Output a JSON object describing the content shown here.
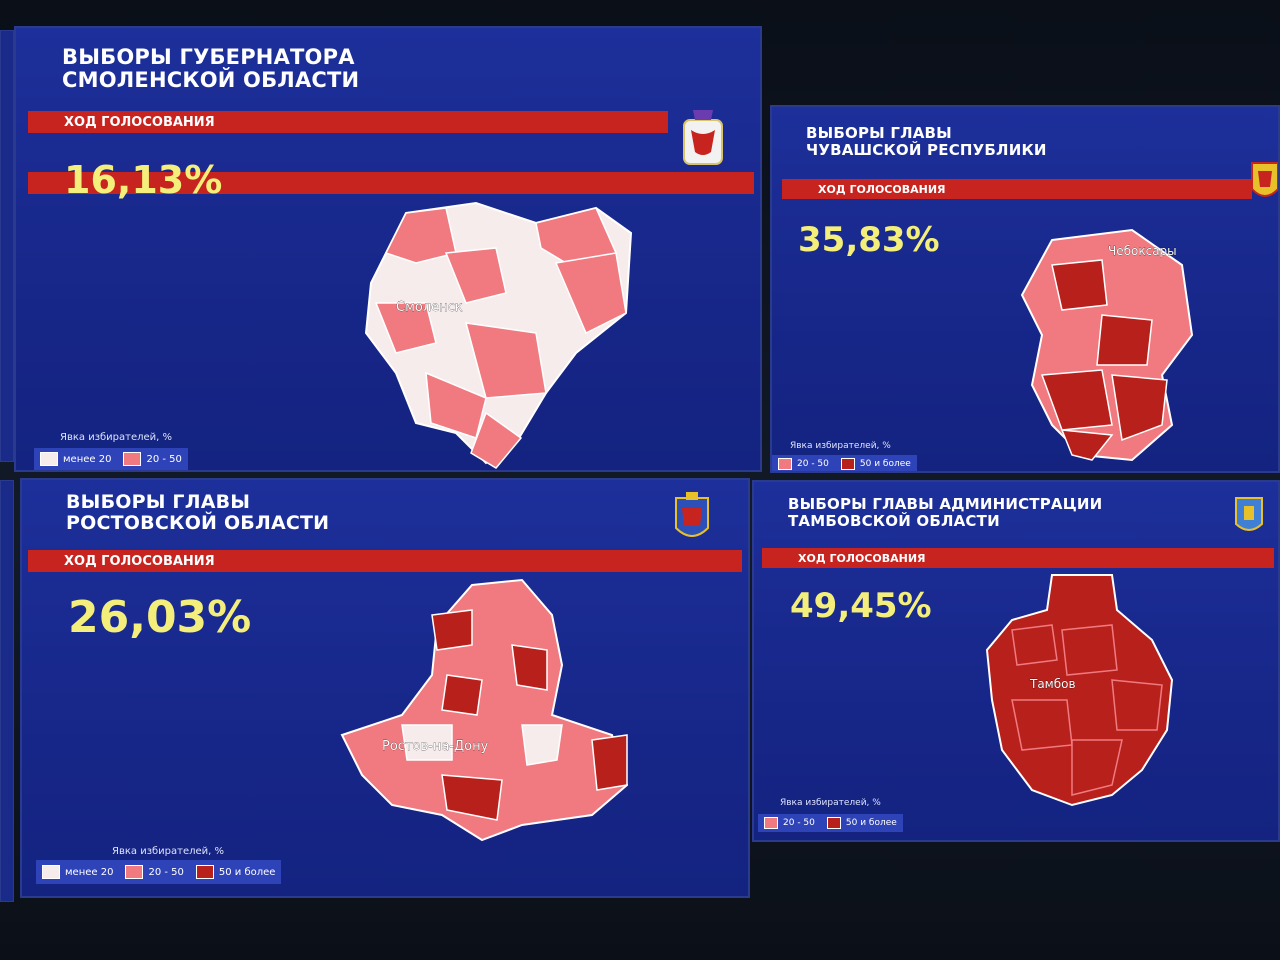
{
  "colors": {
    "panel_bg": "#1a2b91",
    "bar_red": "#c8241f",
    "percent_yellow": "#f4ef7a",
    "less20": "#f7ecec",
    "mid": "#f07a80",
    "high": "#b8201c"
  },
  "panels": [
    {
      "title_line1": "ВЫБОРЫ ГУБЕРНАТОРА",
      "title_line2": "СМОЛЕНСКОЙ ОБЛАСТИ",
      "bar": "ХОД ГОЛОСОВАНИЯ",
      "percent": "16,13%",
      "city": "Смоленск",
      "legend_title": "Явка избирателей, %",
      "legend": [
        {
          "label": "менее 20",
          "color": "#f7ecec"
        },
        {
          "label": "20 - 50",
          "color": "#f07a80"
        }
      ],
      "emblem": "smolensk-coat-of-arms-icon"
    },
    {
      "title_line1": "ВЫБОРЫ ГЛАВЫ",
      "title_line2": "ЧУВАШСКОЙ РЕСПУБЛИКИ",
      "bar": "ХОД ГОЛОСОВАНИЯ",
      "percent": "35,83%",
      "city": "Чебоксары",
      "legend_title": "Явка избирателей, %",
      "legend": [
        {
          "label": "20 - 50",
          "color": "#f07a80"
        },
        {
          "label": "50 и более",
          "color": "#b8201c"
        }
      ],
      "emblem": "chuvash-coat-of-arms-icon"
    },
    {
      "title_line1": "ВЫБОРЫ ГЛАВЫ",
      "title_line2": "РОСТОВСКОЙ ОБЛАСТИ",
      "bar": "ХОД ГОЛОСОВАНИЯ",
      "percent": "26,03%",
      "city": "Ростов-на-Дону",
      "legend_title": "Явка избирателей, %",
      "legend": [
        {
          "label": "менее 20",
          "color": "#f7ecec"
        },
        {
          "label": "20 - 50",
          "color": "#f07a80"
        },
        {
          "label": "50 и более",
          "color": "#b8201c"
        }
      ],
      "emblem": "rostov-coat-of-arms-icon"
    },
    {
      "title_line1": "ВЫБОРЫ ГЛАВЫ АДМИНИСТРАЦИИ",
      "title_line2": "ТАМБОВСКОЙ ОБЛАСТИ",
      "bar": "ХОД ГОЛОСОВАНИЯ",
      "percent": "49,45%",
      "city": "Тамбов",
      "legend_title": "Явка избирателей, %",
      "legend": [
        {
          "label": "20 - 50",
          "color": "#f07a80"
        },
        {
          "label": "50 и более",
          "color": "#b8201c"
        }
      ],
      "emblem": "tambov-coat-of-arms-icon"
    }
  ]
}
